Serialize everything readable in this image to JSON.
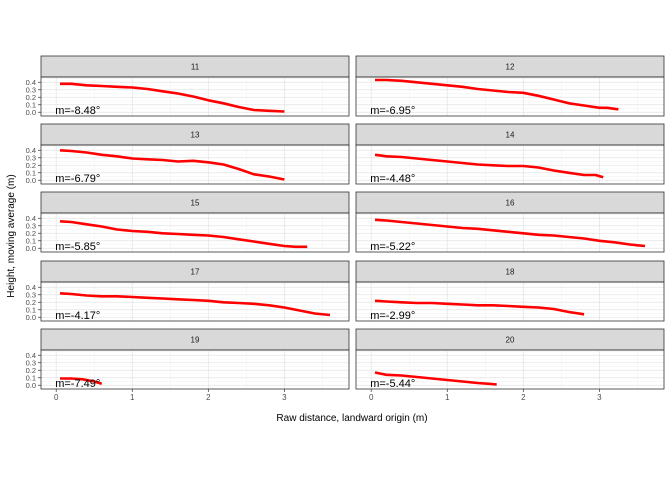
{
  "chart_data": {
    "type": "line",
    "xlabel": "Raw distance, landward origin (m)",
    "ylabel": "Height, moving average (m)",
    "xlim": [
      -0.2,
      3.85
    ],
    "ylim": [
      -0.05,
      0.47
    ],
    "x_ticks": [
      0,
      1,
      2,
      3
    ],
    "y_ticks": [
      0.0,
      0.1,
      0.2,
      0.3,
      0.4
    ],
    "y_tick_labels": [
      "0.0",
      "0.1",
      "0.2",
      "0.3",
      "0.4"
    ],
    "grid": true,
    "line_color": "#ff0000",
    "strip_color": "#d9d9d9",
    "panels": [
      {
        "label": "11",
        "annotation": "m=-8.48°",
        "x": [
          0.05,
          0.2,
          0.4,
          0.6,
          0.8,
          1.0,
          1.2,
          1.4,
          1.6,
          1.8,
          2.0,
          2.2,
          2.4,
          2.6,
          2.8,
          3.0
        ],
        "y": [
          0.38,
          0.38,
          0.36,
          0.35,
          0.34,
          0.33,
          0.31,
          0.28,
          0.25,
          0.21,
          0.16,
          0.12,
          0.07,
          0.03,
          0.02,
          0.01
        ]
      },
      {
        "label": "12",
        "annotation": "m=-6.95°",
        "x": [
          0.05,
          0.2,
          0.4,
          0.6,
          0.8,
          1.0,
          1.2,
          1.4,
          1.6,
          1.8,
          2.0,
          2.2,
          2.4,
          2.6,
          2.8,
          3.0,
          3.1,
          3.25
        ],
        "y": [
          0.43,
          0.43,
          0.42,
          0.4,
          0.38,
          0.36,
          0.34,
          0.31,
          0.29,
          0.27,
          0.26,
          0.22,
          0.17,
          0.12,
          0.09,
          0.06,
          0.06,
          0.04
        ]
      },
      {
        "label": "13",
        "annotation": "m=-6.79°",
        "x": [
          0.05,
          0.2,
          0.4,
          0.6,
          0.8,
          1.0,
          1.2,
          1.4,
          1.6,
          1.8,
          2.0,
          2.2,
          2.4,
          2.6,
          2.8,
          3.0
        ],
        "y": [
          0.4,
          0.39,
          0.37,
          0.34,
          0.32,
          0.29,
          0.28,
          0.27,
          0.25,
          0.26,
          0.24,
          0.21,
          0.15,
          0.08,
          0.05,
          0.01
        ]
      },
      {
        "label": "14",
        "annotation": "m=-4.48°",
        "x": [
          0.05,
          0.2,
          0.4,
          0.6,
          0.8,
          1.0,
          1.2,
          1.4,
          1.6,
          1.8,
          2.0,
          2.2,
          2.4,
          2.6,
          2.8,
          2.95,
          3.05
        ],
        "y": [
          0.34,
          0.32,
          0.31,
          0.29,
          0.27,
          0.25,
          0.23,
          0.21,
          0.2,
          0.19,
          0.19,
          0.17,
          0.13,
          0.1,
          0.07,
          0.07,
          0.04
        ]
      },
      {
        "label": "15",
        "annotation": "m=-5.85°",
        "x": [
          0.05,
          0.2,
          0.4,
          0.6,
          0.8,
          1.0,
          1.2,
          1.4,
          1.6,
          1.8,
          2.0,
          2.2,
          2.4,
          2.6,
          2.8,
          3.0,
          3.15,
          3.3
        ],
        "y": [
          0.36,
          0.35,
          0.32,
          0.29,
          0.25,
          0.23,
          0.22,
          0.2,
          0.19,
          0.18,
          0.17,
          0.15,
          0.12,
          0.09,
          0.06,
          0.03,
          0.02,
          0.02
        ]
      },
      {
        "label": "16",
        "annotation": "m=-5.22°",
        "x": [
          0.05,
          0.2,
          0.4,
          0.6,
          0.8,
          1.0,
          1.2,
          1.4,
          1.6,
          1.8,
          2.0,
          2.2,
          2.4,
          2.6,
          2.8,
          3.0,
          3.2,
          3.4,
          3.6
        ],
        "y": [
          0.38,
          0.37,
          0.35,
          0.33,
          0.31,
          0.29,
          0.27,
          0.26,
          0.24,
          0.22,
          0.2,
          0.18,
          0.17,
          0.15,
          0.13,
          0.1,
          0.08,
          0.05,
          0.03
        ]
      },
      {
        "label": "17",
        "annotation": "m=-4.17°",
        "x": [
          0.05,
          0.2,
          0.4,
          0.6,
          0.8,
          1.0,
          1.2,
          1.4,
          1.6,
          1.8,
          2.0,
          2.2,
          2.4,
          2.6,
          2.8,
          3.0,
          3.2,
          3.4,
          3.6
        ],
        "y": [
          0.32,
          0.31,
          0.29,
          0.28,
          0.28,
          0.27,
          0.26,
          0.25,
          0.24,
          0.23,
          0.22,
          0.2,
          0.19,
          0.18,
          0.16,
          0.13,
          0.09,
          0.05,
          0.03
        ]
      },
      {
        "label": "18",
        "annotation": "m=-2.99°",
        "x": [
          0.05,
          0.2,
          0.4,
          0.6,
          0.8,
          1.0,
          1.2,
          1.4,
          1.6,
          1.8,
          2.0,
          2.2,
          2.4,
          2.6,
          2.8
        ],
        "y": [
          0.22,
          0.21,
          0.2,
          0.19,
          0.19,
          0.18,
          0.17,
          0.16,
          0.16,
          0.15,
          0.14,
          0.13,
          0.11,
          0.07,
          0.04
        ]
      },
      {
        "label": "19",
        "annotation": "m=-7.49°",
        "x": [
          0.05,
          0.2,
          0.35,
          0.5,
          0.6
        ],
        "y": [
          0.09,
          0.09,
          0.08,
          0.05,
          0.02
        ]
      },
      {
        "label": "20",
        "annotation": "m=-5.44°",
        "x": [
          0.05,
          0.2,
          0.4,
          0.6,
          0.8,
          1.0,
          1.2,
          1.4,
          1.55,
          1.65
        ],
        "y": [
          0.17,
          0.14,
          0.13,
          0.11,
          0.09,
          0.07,
          0.05,
          0.03,
          0.02,
          0.01
        ]
      }
    ]
  }
}
